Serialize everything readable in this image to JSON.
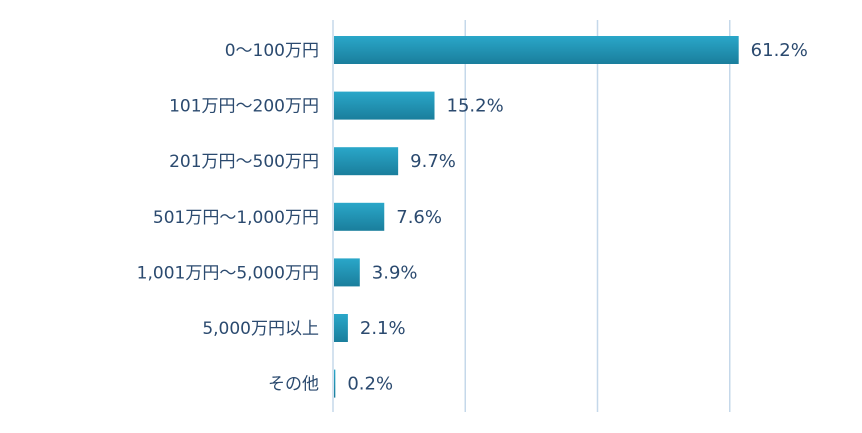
{
  "chart_data": {
    "type": "bar",
    "orientation": "horizontal",
    "categories": [
      "0〜100万円",
      "101万円〜200万円",
      "201万円〜500万円",
      "501万円〜1,000万円",
      "1,001万円〜5,000万円",
      "5,000万円以上",
      "その他"
    ],
    "values": [
      61.2,
      15.2,
      9.7,
      7.6,
      3.9,
      2.1,
      0.2
    ],
    "value_labels": [
      "61.2%",
      "15.2%",
      "9.7%",
      "7.6%",
      "3.9%",
      "2.1%",
      "0.2%"
    ],
    "title": "",
    "xlabel": "",
    "ylabel": "",
    "xlim": [
      0,
      80
    ],
    "grid": "vertical",
    "legend": "none",
    "colors": {
      "bar": "#2aa7c9",
      "bar_dark": "#1a7e9c",
      "grid": "#c5d8ea",
      "text": "#2b4a6f"
    }
  }
}
